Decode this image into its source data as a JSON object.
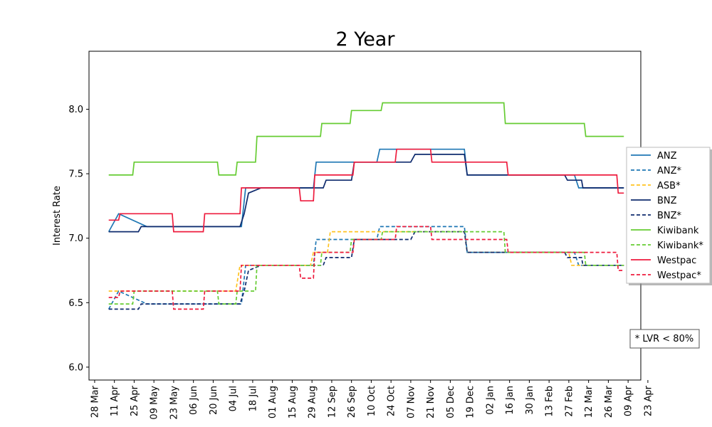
{
  "chart_data": {
    "type": "line",
    "title": "2 Year",
    "xlabel": "",
    "ylabel": "Interest Rate",
    "x_tick_labels": [
      "28 Mar",
      "11 Apr",
      "25 Apr",
      "09 May",
      "23 May",
      "06 Jun",
      "20 Jun",
      "04 Jul",
      "18 Jul",
      "01 Aug",
      "15 Aug",
      "29 Aug",
      "12 Sep",
      "26 Sep",
      "10 Oct",
      "24 Oct",
      "07 Nov",
      "21 Nov",
      "05 Dec",
      "19 Dec",
      "02 Jan",
      "16 Jan",
      "30 Jan",
      "13 Feb",
      "27 Feb",
      "12 Mar",
      "26 Mar",
      "09 Apr",
      "23 Apr"
    ],
    "y_ticks": [
      6.0,
      6.5,
      7.0,
      7.5,
      8.0
    ],
    "y_tick_labels": [
      "6.0",
      "6.5",
      "7.0",
      "7.5",
      "8.0"
    ],
    "ylim": [
      5.9,
      8.45
    ],
    "xlim_days": [
      -4,
      387
    ],
    "grid": false,
    "legend_position": "right",
    "annotation": "* LVR < 80%",
    "series": [
      {
        "name": "ANZ",
        "color": "#1f77b4",
        "dash": "solid",
        "points": [
          [
            10,
            7.05
          ],
          [
            17,
            7.19
          ],
          [
            37,
            7.09
          ],
          [
            104,
            7.09
          ],
          [
            107,
            7.39
          ],
          [
            155,
            7.39
          ],
          [
            157,
            7.59
          ],
          [
            200,
            7.59
          ],
          [
            202,
            7.69
          ],
          [
            262,
            7.69
          ],
          [
            264,
            7.49
          ],
          [
            340,
            7.49
          ],
          [
            343,
            7.39
          ],
          [
            375,
            7.39
          ]
        ]
      },
      {
        "name": "ANZ*",
        "color": "#1f77b4",
        "dash": "dashed",
        "points": [
          [
            10,
            6.45
          ],
          [
            17,
            6.59
          ],
          [
            37,
            6.49
          ],
          [
            104,
            6.49
          ],
          [
            107,
            6.79
          ],
          [
            155,
            6.79
          ],
          [
            157,
            6.99
          ],
          [
            200,
            6.99
          ],
          [
            202,
            7.09
          ],
          [
            262,
            7.09
          ],
          [
            264,
            6.89
          ],
          [
            340,
            6.89
          ],
          [
            343,
            6.79
          ],
          [
            375,
            6.79
          ]
        ]
      },
      {
        "name": "ASB*",
        "color": "#ffc320",
        "dash": "dashed",
        "points": [
          [
            10,
            6.59
          ],
          [
            100,
            6.59
          ],
          [
            103,
            6.79
          ],
          [
            153,
            6.79
          ],
          [
            155,
            6.89
          ],
          [
            165,
            6.89
          ],
          [
            167,
            7.05
          ],
          [
            200,
            7.05
          ],
          [
            202,
            7.05
          ],
          [
            262,
            7.05
          ],
          [
            264,
            6.89
          ],
          [
            336,
            6.89
          ],
          [
            338,
            6.79
          ],
          [
            375,
            6.79
          ]
        ]
      },
      {
        "name": "BNZ",
        "color": "#0f2b6e",
        "dash": "solid",
        "points": [
          [
            10,
            7.05
          ],
          [
            31,
            7.05
          ],
          [
            33,
            7.09
          ],
          [
            84,
            7.09
          ],
          [
            86,
            7.09
          ],
          [
            103,
            7.09
          ],
          [
            106,
            7.19
          ],
          [
            109,
            7.35
          ],
          [
            118,
            7.39
          ],
          [
            162,
            7.39
          ],
          [
            164,
            7.45
          ],
          [
            182,
            7.45
          ],
          [
            184,
            7.59
          ],
          [
            224,
            7.59
          ],
          [
            227,
            7.65
          ],
          [
            262,
            7.65
          ],
          [
            264,
            7.49
          ],
          [
            333,
            7.49
          ],
          [
            335,
            7.45
          ],
          [
            345,
            7.45
          ],
          [
            346,
            7.39
          ],
          [
            375,
            7.39
          ]
        ]
      },
      {
        "name": "BNZ*",
        "color": "#0f2b6e",
        "dash": "dashed",
        "points": [
          [
            10,
            6.45
          ],
          [
            31,
            6.45
          ],
          [
            33,
            6.49
          ],
          [
            84,
            6.49
          ],
          [
            86,
            6.49
          ],
          [
            103,
            6.49
          ],
          [
            106,
            6.59
          ],
          [
            109,
            6.75
          ],
          [
            118,
            6.79
          ],
          [
            162,
            6.79
          ],
          [
            164,
            6.85
          ],
          [
            182,
            6.85
          ],
          [
            184,
            6.99
          ],
          [
            224,
            6.99
          ],
          [
            227,
            7.05
          ],
          [
            262,
            7.05
          ],
          [
            264,
            6.89
          ],
          [
            333,
            6.89
          ],
          [
            335,
            6.85
          ],
          [
            345,
            6.85
          ],
          [
            346,
            6.79
          ],
          [
            375,
            6.79
          ]
        ]
      },
      {
        "name": "Kiwibank",
        "color": "#66cc33",
        "dash": "solid",
        "points": [
          [
            10,
            7.49
          ],
          [
            27,
            7.49
          ],
          [
            28,
            7.59
          ],
          [
            87,
            7.59
          ],
          [
            88,
            7.49
          ],
          [
            100,
            7.49
          ],
          [
            101,
            7.59
          ],
          [
            114,
            7.59
          ],
          [
            115,
            7.79
          ],
          [
            160,
            7.79
          ],
          [
            161,
            7.89
          ],
          [
            181,
            7.89
          ],
          [
            182,
            7.99
          ],
          [
            203,
            7.99
          ],
          [
            204,
            8.05
          ],
          [
            290,
            8.05
          ],
          [
            291,
            7.89
          ],
          [
            347,
            7.89
          ],
          [
            348,
            7.79
          ],
          [
            375,
            7.79
          ]
        ]
      },
      {
        "name": "Kiwibank*",
        "color": "#66cc33",
        "dash": "dashed",
        "points": [
          [
            10,
            6.49
          ],
          [
            27,
            6.49
          ],
          [
            28,
            6.59
          ],
          [
            87,
            6.59
          ],
          [
            88,
            6.49
          ],
          [
            100,
            6.49
          ],
          [
            101,
            6.59
          ],
          [
            114,
            6.59
          ],
          [
            115,
            6.79
          ],
          [
            160,
            6.79
          ],
          [
            161,
            6.89
          ],
          [
            181,
            6.89
          ],
          [
            182,
            6.99
          ],
          [
            203,
            6.99
          ],
          [
            204,
            7.05
          ],
          [
            290,
            7.05
          ],
          [
            291,
            6.89
          ],
          [
            347,
            6.89
          ],
          [
            348,
            6.79
          ],
          [
            375,
            6.79
          ]
        ]
      },
      {
        "name": "Westpac",
        "color": "#ee1c3e",
        "dash": "solid",
        "points": [
          [
            10,
            7.14
          ],
          [
            17,
            7.14
          ],
          [
            18,
            7.19
          ],
          [
            55,
            7.19
          ],
          [
            56,
            7.05
          ],
          [
            77,
            7.05
          ],
          [
            78,
            7.19
          ],
          [
            103,
            7.19
          ],
          [
            104,
            7.39
          ],
          [
            145,
            7.39
          ],
          [
            146,
            7.29
          ],
          [
            155,
            7.29
          ],
          [
            156,
            7.49
          ],
          [
            183,
            7.49
          ],
          [
            184,
            7.59
          ],
          [
            213,
            7.59
          ],
          [
            214,
            7.69
          ],
          [
            238,
            7.69
          ],
          [
            239,
            7.59
          ],
          [
            292,
            7.59
          ],
          [
            293,
            7.49
          ],
          [
            370,
            7.49
          ],
          [
            371,
            7.35
          ],
          [
            375,
            7.35
          ]
        ]
      },
      {
        "name": "Westpac*",
        "color": "#ee1c3e",
        "dash": "dashed",
        "points": [
          [
            10,
            6.54
          ],
          [
            17,
            6.54
          ],
          [
            18,
            6.59
          ],
          [
            55,
            6.59
          ],
          [
            56,
            6.45
          ],
          [
            77,
            6.45
          ],
          [
            78,
            6.59
          ],
          [
            103,
            6.59
          ],
          [
            104,
            6.79
          ],
          [
            145,
            6.79
          ],
          [
            146,
            6.69
          ],
          [
            155,
            6.69
          ],
          [
            156,
            6.89
          ],
          [
            183,
            6.89
          ],
          [
            184,
            6.99
          ],
          [
            213,
            6.99
          ],
          [
            214,
            7.09
          ],
          [
            238,
            7.09
          ],
          [
            239,
            6.99
          ],
          [
            292,
            6.99
          ],
          [
            293,
            6.89
          ],
          [
            370,
            6.89
          ],
          [
            371,
            6.75
          ],
          [
            375,
            6.75
          ]
        ]
      }
    ]
  }
}
